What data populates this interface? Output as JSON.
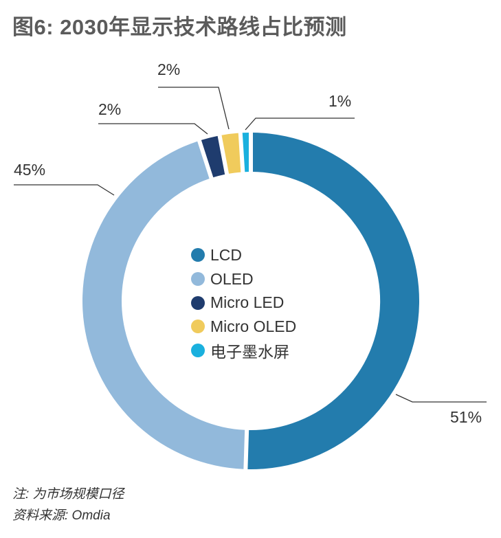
{
  "title": "图6: 2030年显示技术路线占比预测",
  "chart_data": {
    "type": "pie",
    "variant": "donut",
    "title": "图6: 2030年显示技术路线占比预测",
    "categories": [
      "LCD",
      "OLED",
      "Micro LED",
      "Micro OLED",
      "电子墨水屏"
    ],
    "values": [
      51,
      45,
      2,
      2,
      1
    ],
    "data_labels": [
      "51%",
      "45%",
      "2%",
      "2%",
      "1%"
    ],
    "colors": [
      "#237cad",
      "#92b9db",
      "#1f3c6e",
      "#f0cb5c",
      "#1ab0de"
    ],
    "legend": {
      "placement": "center",
      "entries": [
        "LCD",
        "OLED",
        "Micro LED",
        "Micro OLED",
        "电子墨水屏"
      ]
    }
  },
  "footer": {
    "note": "注: 为市场规模口径",
    "source": "资料来源: Omdia"
  }
}
